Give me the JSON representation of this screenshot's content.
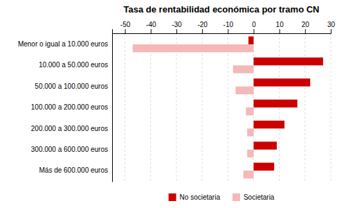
{
  "chart_data": {
    "type": "bar",
    "orientation": "horizontal",
    "title": "Tasa de rentabilidad económica por tramo CN",
    "categories": [
      "Menor o igual a 10.000 euros",
      "10.000 a 50.000 euros",
      "50.000 a 100.000 euros",
      "100.000 a 200.000 euros",
      "200.000 a 300.000 euros",
      "300.000 a 600.000 euros",
      "Más de 600.000 euros"
    ],
    "series": [
      {
        "name": "No societaria",
        "color": "#cc0000",
        "values": [
          -2,
          27,
          22,
          17,
          12,
          9,
          8
        ]
      },
      {
        "name": "Societaria",
        "color": "#f4b8b8",
        "values": [
          -47,
          -8,
          -7,
          -3,
          -2.5,
          -2.5,
          -4
        ]
      }
    ],
    "xlim": [
      -55,
      30
    ],
    "xticks": [
      -50,
      -40,
      -30,
      -20,
      -10,
      0,
      10,
      20,
      30
    ],
    "grid": true,
    "legend": "bottom"
  }
}
